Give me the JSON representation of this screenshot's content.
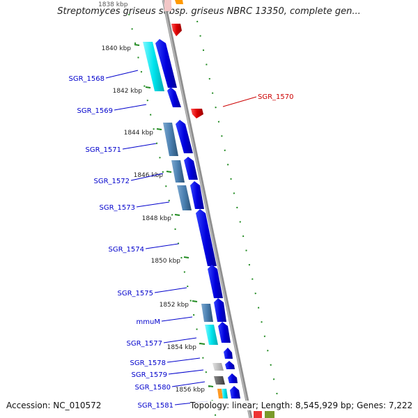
{
  "title": "Streptomyces griseus subsp. griseus NBRC 13350, complete gen...",
  "top_clipped_tick": "1838 kbp",
  "ticks": [
    {
      "label": "1840 kbp",
      "kbp": 1840
    },
    {
      "label": "1842 kbp",
      "kbp": 1842
    },
    {
      "label": "1844 kbp",
      "kbp": 1844
    },
    {
      "label": "1846 kbp",
      "kbp": 1846
    },
    {
      "label": "1848 kbp",
      "kbp": 1848
    },
    {
      "label": "1850 kbp",
      "kbp": 1850
    },
    {
      "label": "1852 kbp",
      "kbp": 1852
    },
    {
      "label": "1854 kbp",
      "kbp": 1854
    },
    {
      "label": "1856 kbp",
      "kbp": 1856
    }
  ],
  "gene_labels": [
    {
      "label": "SGR_1568",
      "color": "#0000cc"
    },
    {
      "label": "SGR_1569",
      "color": "#0000cc"
    },
    {
      "label": "SGR_1570",
      "color": "#cc0000"
    },
    {
      "label": "SGR_1571",
      "color": "#0000cc"
    },
    {
      "label": "SGR_1572",
      "color": "#0000cc"
    },
    {
      "label": "SGR_1573",
      "color": "#0000cc"
    },
    {
      "label": "SGR_1574",
      "color": "#0000cc"
    },
    {
      "label": "SGR_1575",
      "color": "#0000cc"
    },
    {
      "label": "mmuM",
      "color": "#0000cc"
    },
    {
      "label": "SGR_1577",
      "color": "#0000cc"
    },
    {
      "label": "SGR_1578",
      "color": "#0000cc"
    },
    {
      "label": "SGR_1579",
      "color": "#0000cc"
    },
    {
      "label": "SGR_1580",
      "color": "#0000cc"
    },
    {
      "label": "SGR_1581",
      "color": "#0000cc"
    }
  ],
  "footer": {
    "accession": "Accession: NC_010572",
    "topology": "Topology: linear;",
    "length": "Length: 8,545,929 bp;",
    "genes": "Genes: 7,222"
  },
  "colors": {
    "cds_forward": "#0000dd",
    "cds_reverse": "#dd0000",
    "homolog_cyan": "#00e5ee",
    "homolog_steel": "#4a7fb0",
    "homolog_gray": "#b8b8b8",
    "homolog_darkgray": "#606060",
    "backbone": "#909090",
    "tick_green": "#228b22"
  }
}
